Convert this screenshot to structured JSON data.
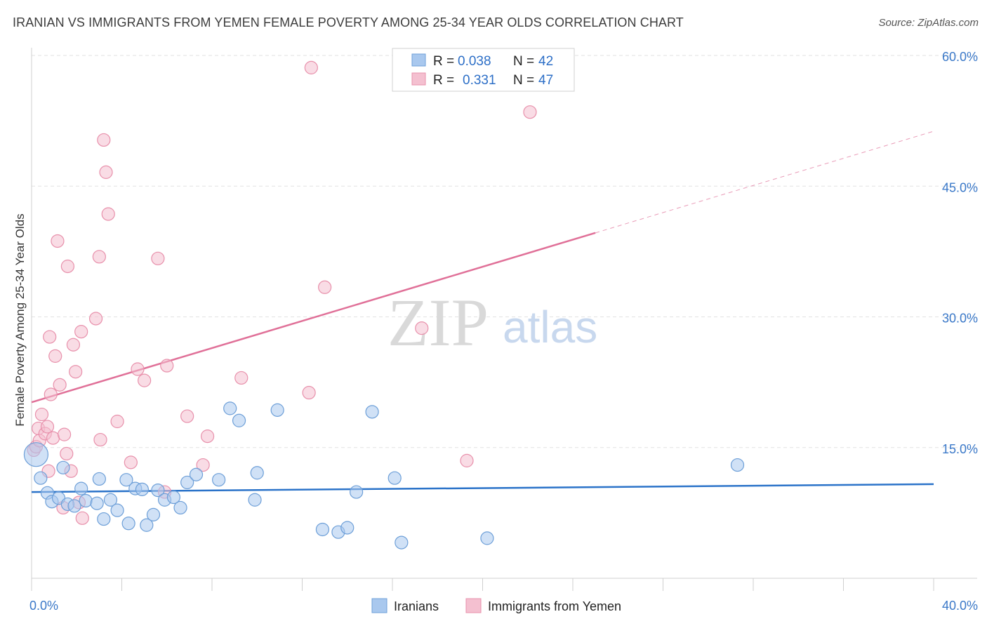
{
  "title": "IRANIAN VS IMMIGRANTS FROM YEMEN FEMALE POVERTY AMONG 25-34 YEAR OLDS CORRELATION CHART",
  "source": "Source: ZipAtlas.com",
  "watermark": {
    "zip": "ZIP",
    "atlas": "atlas"
  },
  "legend": {
    "r_label": "R =",
    "n_label": "N =",
    "series": [
      {
        "r": "0.038",
        "n": "42"
      },
      {
        "r": "0.331",
        "n": "47"
      }
    ]
  },
  "colors": {
    "blue_fill": "#a9c8ee",
    "blue_stroke": "#6d9fd8",
    "blue_line": "#2b73c9",
    "pink_fill": "#f4c0d0",
    "pink_stroke": "#e890ab",
    "pink_line": "#e07098",
    "axis_label": "#3a78c8"
  },
  "chart_data": {
    "type": "scatter",
    "title": "IRANIAN VS IMMIGRANTS FROM YEMEN FEMALE POVERTY AMONG 25-34 YEAR OLDS CORRELATION CHART",
    "xlabel": "",
    "ylabel": "Female Poverty Among 25-34 Year Olds",
    "xlim": [
      0,
      40
    ],
    "ylim": [
      0,
      60
    ],
    "x_tick_labels": [
      "0.0%",
      "40.0%"
    ],
    "y_ticks": [
      15,
      30,
      45,
      60
    ],
    "y_tick_labels": [
      "15.0%",
      "30.0%",
      "45.0%",
      "60.0%"
    ],
    "grid": true,
    "legend_position": "top-center",
    "series": [
      {
        "name": "Iranians",
        "color": "#a9c8ee",
        "trend": {
          "x": [
            0,
            40
          ],
          "y": [
            9.9,
            10.8
          ],
          "dashed_from": null
        },
        "points": [
          [
            0.2,
            14.2
          ],
          [
            0.4,
            11.5
          ],
          [
            0.7,
            9.8
          ],
          [
            0.9,
            8.8
          ],
          [
            1.2,
            9.2
          ],
          [
            1.4,
            12.7
          ],
          [
            1.6,
            8.5
          ],
          [
            1.9,
            8.3
          ],
          [
            2.2,
            10.3
          ],
          [
            2.4,
            8.9
          ],
          [
            2.9,
            8.6
          ],
          [
            3.0,
            11.4
          ],
          [
            3.2,
            6.8
          ],
          [
            3.5,
            9.0
          ],
          [
            3.8,
            7.8
          ],
          [
            4.2,
            11.3
          ],
          [
            4.3,
            6.3
          ],
          [
            4.6,
            10.3
          ],
          [
            4.9,
            10.2
          ],
          [
            5.1,
            6.1
          ],
          [
            5.4,
            7.3
          ],
          [
            5.6,
            10.1
          ],
          [
            5.9,
            9.0
          ],
          [
            6.3,
            9.3
          ],
          [
            6.6,
            8.1
          ],
          [
            6.9,
            11.0
          ],
          [
            7.3,
            11.9
          ],
          [
            8.3,
            11.3
          ],
          [
            8.8,
            19.5
          ],
          [
            9.2,
            18.1
          ],
          [
            9.9,
            9.0
          ],
          [
            10.0,
            12.1
          ],
          [
            10.9,
            19.3
          ],
          [
            12.9,
            5.6
          ],
          [
            13.6,
            5.3
          ],
          [
            14.0,
            5.8
          ],
          [
            14.4,
            9.9
          ],
          [
            15.1,
            19.1
          ],
          [
            16.1,
            11.5
          ],
          [
            16.4,
            4.1
          ],
          [
            20.2,
            4.6
          ],
          [
            31.3,
            13.0
          ]
        ]
      },
      {
        "name": "Immigrants from Yemen",
        "color": "#f4c0d0",
        "trend": {
          "x": [
            0,
            40
          ],
          "y": [
            20.2,
            51.3
          ],
          "dashed_from": 25.0
        },
        "points": [
          [
            0.1,
            14.7
          ],
          [
            0.2,
            15.1
          ],
          [
            0.3,
            17.2
          ],
          [
            0.35,
            15.8
          ],
          [
            0.45,
            18.8
          ],
          [
            0.6,
            16.6
          ],
          [
            0.7,
            17.4
          ],
          [
            0.75,
            12.3
          ],
          [
            0.8,
            27.7
          ],
          [
            0.85,
            21.1
          ],
          [
            0.95,
            16.1
          ],
          [
            1.05,
            25.5
          ],
          [
            1.15,
            38.7
          ],
          [
            1.25,
            22.2
          ],
          [
            1.4,
            8.1
          ],
          [
            1.45,
            16.5
          ],
          [
            1.55,
            14.3
          ],
          [
            1.6,
            35.8
          ],
          [
            1.75,
            12.3
          ],
          [
            1.85,
            26.8
          ],
          [
            1.95,
            23.7
          ],
          [
            2.1,
            8.7
          ],
          [
            2.2,
            28.3
          ],
          [
            2.25,
            6.9
          ],
          [
            2.85,
            29.8
          ],
          [
            3.0,
            36.9
          ],
          [
            3.05,
            15.9
          ],
          [
            3.2,
            50.3
          ],
          [
            3.3,
            46.6
          ],
          [
            3.4,
            41.8
          ],
          [
            3.8,
            18.0
          ],
          [
            4.4,
            13.3
          ],
          [
            4.7,
            24.0
          ],
          [
            5.0,
            22.7
          ],
          [
            5.6,
            36.7
          ],
          [
            5.9,
            9.9
          ],
          [
            6.0,
            24.4
          ],
          [
            6.9,
            18.6
          ],
          [
            7.6,
            13.0
          ],
          [
            7.8,
            16.3
          ],
          [
            9.3,
            23.0
          ],
          [
            12.3,
            21.3
          ],
          [
            12.4,
            58.6
          ],
          [
            13.0,
            33.4
          ],
          [
            17.3,
            28.7
          ],
          [
            19.3,
            13.5
          ],
          [
            22.1,
            53.5
          ]
        ]
      }
    ]
  },
  "bottom_legend": [
    {
      "label": "Iranians"
    },
    {
      "label": "Immigrants from Yemen"
    }
  ]
}
